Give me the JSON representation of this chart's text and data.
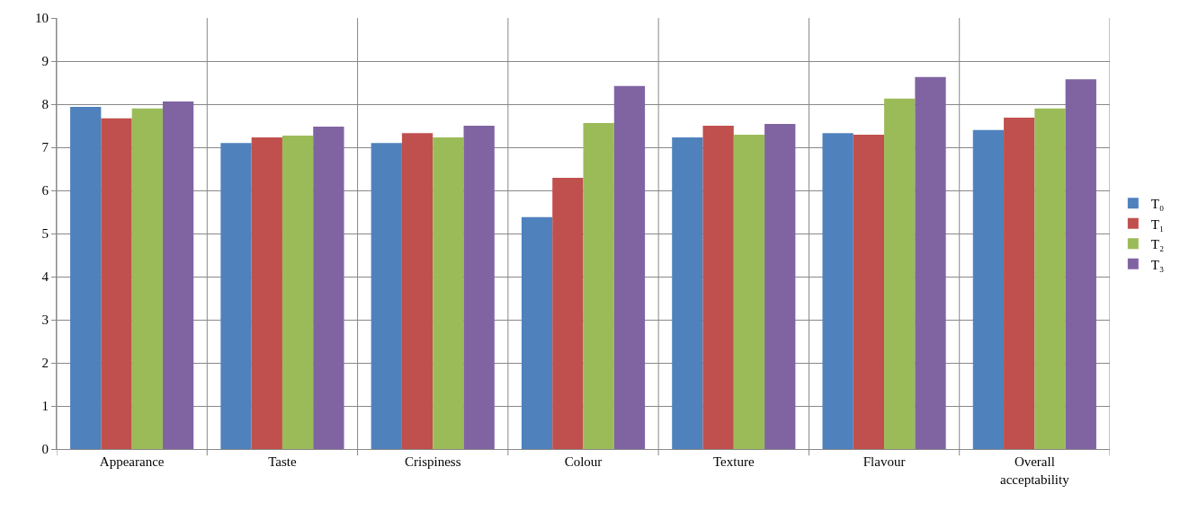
{
  "chart_data": {
    "type": "bar",
    "categories": [
      "Appearance",
      "Taste",
      "Crispiness",
      "Colour",
      "Texture",
      "Flavour",
      "Overall acceptability"
    ],
    "series": [
      {
        "name": "T₀",
        "color": "#4f81bd",
        "values": [
          7.94,
          7.1,
          7.1,
          5.38,
          7.23,
          7.33,
          7.4
        ]
      },
      {
        "name": "T₁",
        "color": "#c0504d",
        "values": [
          7.67,
          7.23,
          7.33,
          6.29,
          7.5,
          7.29,
          7.69
        ]
      },
      {
        "name": "T₂",
        "color": "#9bbb59",
        "values": [
          7.9,
          7.27,
          7.23,
          7.56,
          7.29,
          8.13,
          7.9
        ]
      },
      {
        "name": "T₃",
        "color": "#8064a2",
        "values": [
          8.06,
          7.48,
          7.5,
          8.42,
          7.54,
          8.63,
          8.58
        ]
      }
    ],
    "ylim": [
      0,
      10
    ],
    "yticks": [
      0,
      1,
      2,
      3,
      4,
      5,
      6,
      7,
      8,
      9,
      10
    ],
    "grid": true,
    "legend": "right"
  }
}
